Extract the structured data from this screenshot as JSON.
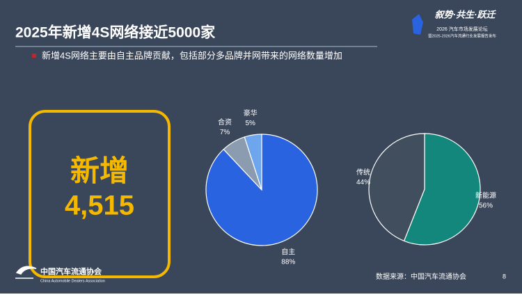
{
  "slide": {
    "title": "2025年新增4S网络接近5000家",
    "bullet": "新增4S网络主要由自主品牌贡献，包括部分多品牌并网带来的网络数量增加",
    "highlight_label": "新增",
    "highlight_number": "4,515",
    "logo_slogan": "叙势·共生·跃迁",
    "logo_line1": "2026 汽车市场发展论坛",
    "logo_line2": "暨2025-2026汽车流通行业发展报告发布",
    "footer_org": "中国汽车流通协会",
    "footer_org_en": "China Automobile Dealers Association",
    "source": "数据来源：中国汽车流通协会",
    "page": "8"
  },
  "chart_data": [
    {
      "type": "pie",
      "categories": [
        "自主",
        "合资",
        "豪华"
      ],
      "values": [
        88,
        7,
        5
      ],
      "value_labels": [
        "88%",
        "7%",
        "5%"
      ],
      "colors": [
        "#2a63e0",
        "#8c9cb0",
        "#6ea6ee"
      ]
    },
    {
      "type": "pie",
      "categories": [
        "新能源",
        "传统"
      ],
      "values": [
        56,
        44
      ],
      "value_labels": [
        "56%",
        "44%"
      ],
      "colors": [
        "#13877b",
        "#404e5e"
      ]
    }
  ]
}
